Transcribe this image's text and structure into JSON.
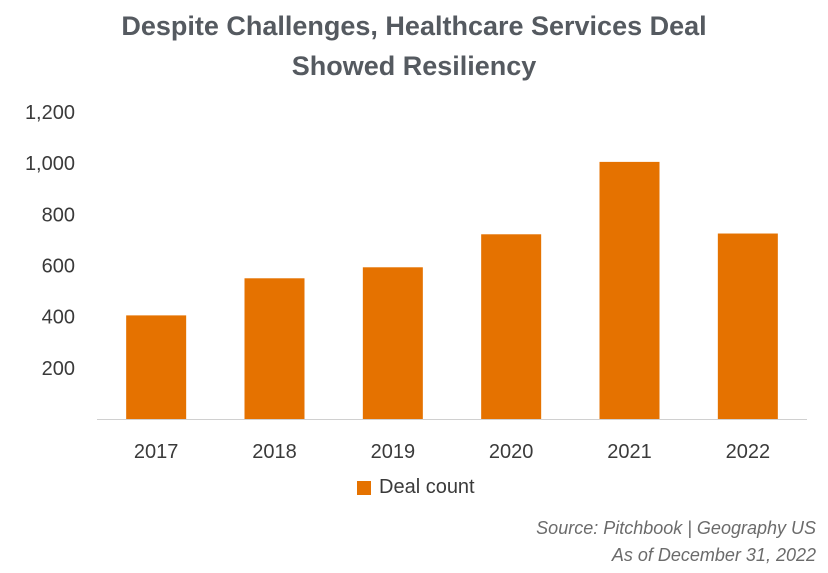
{
  "chart_data": {
    "type": "bar",
    "title": [
      "Despite Challenges, Healthcare Services Deal",
      "Showed Resiliency"
    ],
    "categories": [
      "2017",
      "2018",
      "2019",
      "2020",
      "2021",
      "2022"
    ],
    "series": [
      {
        "name": "Deal count",
        "values": [
          405,
          550,
          593,
          722,
          1005,
          725
        ],
        "color": "#e57200"
      }
    ],
    "ylim": [
      0,
      1200
    ],
    "yticks": [
      200,
      400,
      600,
      800,
      1000,
      1200
    ],
    "ytick_labels": [
      "200",
      "400",
      "600",
      "800",
      "1,000",
      "1,200"
    ],
    "grid": false,
    "legend": "bottom",
    "source": [
      "Source: Pitchbook | Geography US",
      "As of December 31, 2022"
    ]
  }
}
